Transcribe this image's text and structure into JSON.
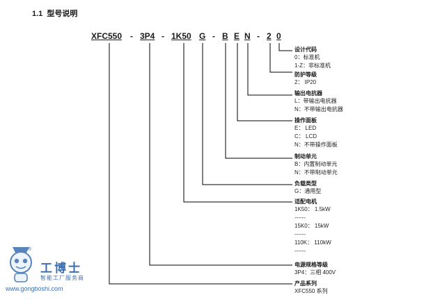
{
  "heading": {
    "number": "1.1",
    "title": "型号说明"
  },
  "code": {
    "parts": [
      "XFC550",
      "3P4",
      "1K50",
      "G",
      "B",
      "E",
      "N",
      "2",
      "0"
    ],
    "separator": "-"
  },
  "fields": [
    {
      "title": "设计代码",
      "options": [
        "0：标准机",
        "1-Z：非标准机"
      ]
    },
    {
      "title": "防护等级",
      "options": [
        "2：  IP20"
      ]
    },
    {
      "title": "输出电抗器",
      "options": [
        "L：带输出电抗器",
        "N：不带输出电抗器"
      ]
    },
    {
      "title": "操作面板",
      "options": [
        "E：  LED",
        "C：  LCD",
        "N：不带操作面板"
      ]
    },
    {
      "title": "制动单元",
      "options": [
        "B：内置制动单元",
        "N：不带制动单元"
      ]
    },
    {
      "title": "负载类型",
      "options": [
        "G：通用型"
      ]
    },
    {
      "title": "适配电机",
      "options": [
        "1K50：  1.5kW",
        "------",
        "15K0：  15kW",
        "------",
        "110K：  110kW",
        "------"
      ]
    },
    {
      "title": "电源规格等级",
      "options": [
        "3P4：三相 400V"
      ]
    },
    {
      "title": "产品系列",
      "options": [
        "XFC550 系列"
      ]
    }
  ],
  "watermark": {
    "name": "工博士",
    "slogan": "智能工厂服务商",
    "url": "www.gongboshi.com",
    "reg": "®",
    "accent": "#3b6fb0"
  }
}
